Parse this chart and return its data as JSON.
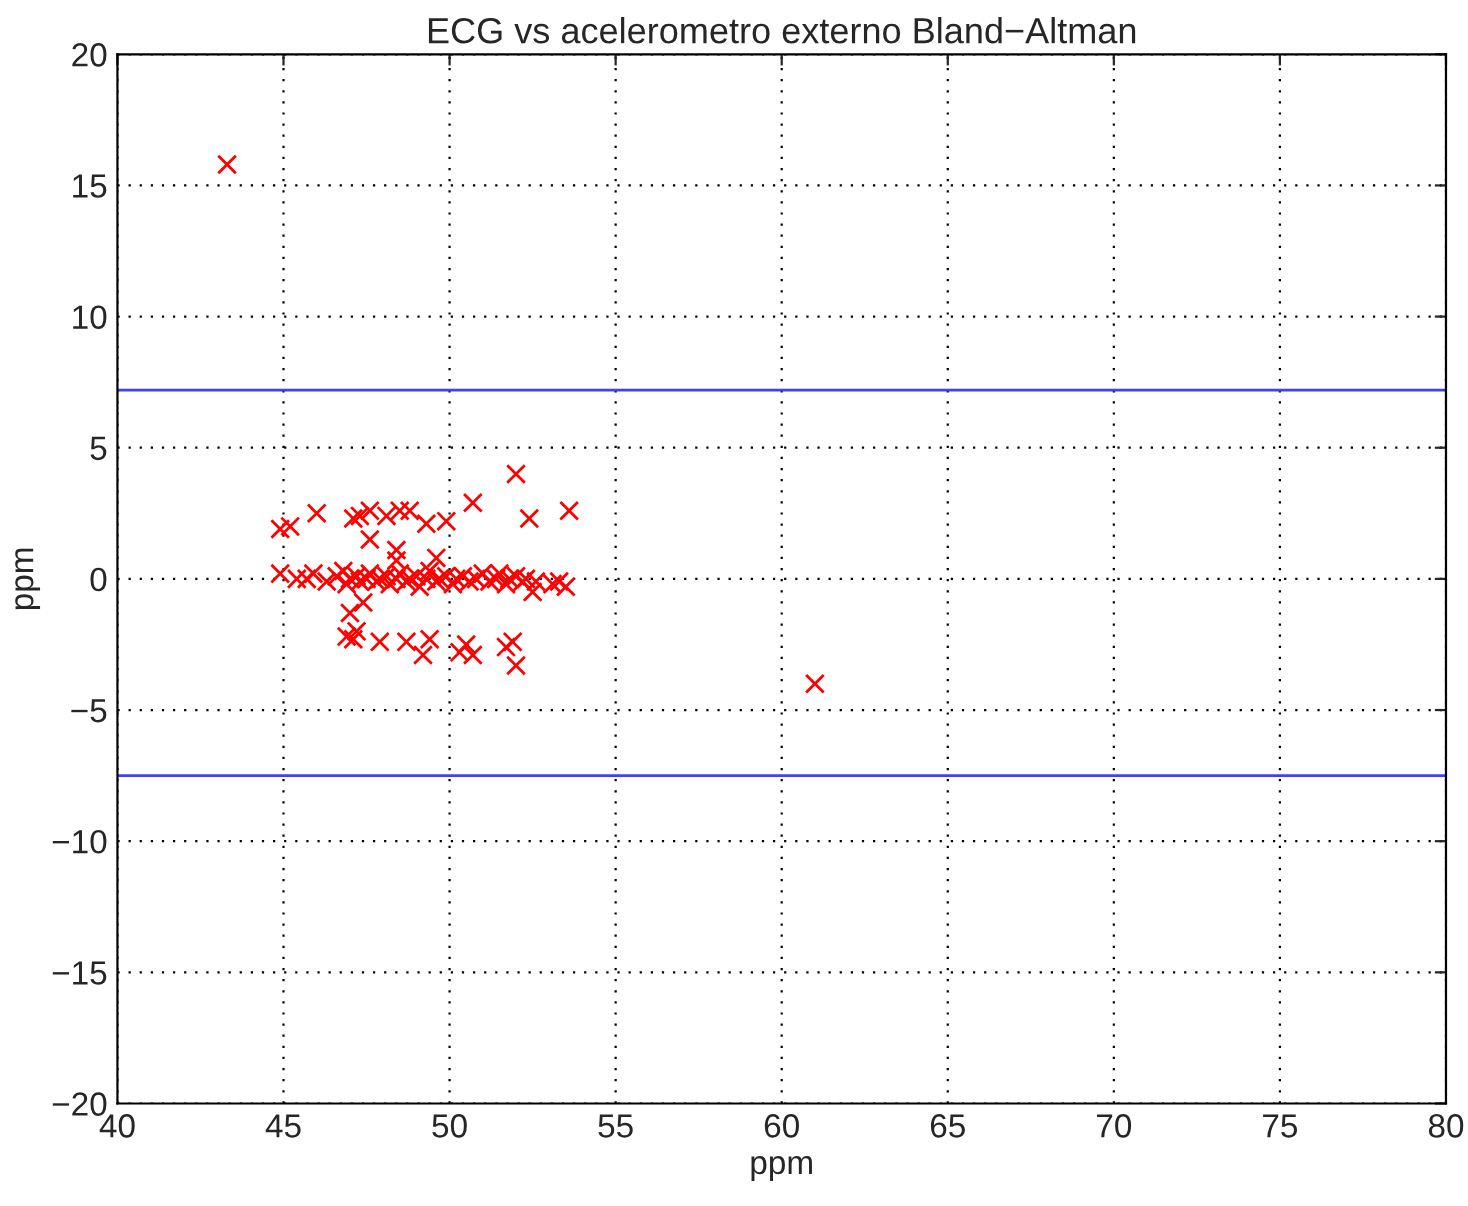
{
  "chart_data": {
    "type": "scatter",
    "title": "ECG vs acelerometro externo Bland−Altman",
    "xlabel": "ppm",
    "ylabel": "ppm",
    "xlim": [
      40,
      80
    ],
    "xticks": [
      40,
      45,
      50,
      55,
      60,
      65,
      70,
      75,
      80
    ],
    "ylim": [
      -20,
      20
    ],
    "yticks": [
      {
        "value": -20,
        "label": "−20"
      },
      {
        "value": -15,
        "label": "−15"
      },
      {
        "value": -10,
        "label": "−10"
      },
      {
        "value": -5,
        "label": "−5"
      },
      0,
      5,
      10,
      15,
      20
    ],
    "grid": true,
    "marker": "cross",
    "series": [
      {
        "color": "#ff0000",
        "x": [
          43.3,
          61.0,
          44.9,
          45.2,
          46.0,
          47.1,
          47.3,
          47.6,
          48.1,
          48.5,
          48.8,
          49.3,
          49.9,
          50.7,
          52.0,
          52.4,
          53.6,
          47.6,
          48.4,
          48.4,
          49.6,
          47.0,
          47.4,
          46.9,
          47.1,
          47.2,
          47.9,
          48.7,
          49.2,
          49.4,
          50.3,
          50.5,
          50.7,
          51.7,
          51.9,
          52.0,
          52.5,
          44.9,
          45.4,
          45.7,
          45.9,
          46.3,
          46.6,
          46.8,
          46.9,
          47.0,
          47.2,
          47.3,
          47.5,
          47.6,
          47.8,
          47.9,
          48.1,
          48.2,
          48.4,
          48.5,
          48.7,
          48.8,
          49.0,
          49.1,
          49.3,
          49.4,
          49.6,
          49.7,
          49.9,
          50.1,
          50.2,
          50.4,
          50.6,
          50.8,
          51.0,
          51.2,
          51.4,
          51.5,
          51.7,
          51.8,
          52.0,
          52.2,
          52.3,
          52.6,
          53.1,
          53.3,
          53.5
        ],
        "values": [
          15.8,
          -4.0,
          1.9,
          2.0,
          2.5,
          2.3,
          2.4,
          2.6,
          2.4,
          2.6,
          2.6,
          2.1,
          2.2,
          2.9,
          4.0,
          2.3,
          2.6,
          1.5,
          1.1,
          0.7,
          0.8,
          -1.3,
          -0.9,
          -2.2,
          -2.3,
          -2.0,
          -2.4,
          -2.4,
          -2.9,
          -2.3,
          -2.8,
          -2.5,
          -2.9,
          -2.6,
          -2.4,
          -3.3,
          -0.5,
          0.2,
          0.0,
          0.0,
          0.2,
          -0.1,
          0.1,
          0.3,
          -0.2,
          0.0,
          0.1,
          -0.1,
          0.0,
          0.2,
          -0.1,
          0.0,
          0.1,
          -0.2,
          0.0,
          0.2,
          -0.1,
          0.0,
          0.1,
          -0.3,
          0.0,
          0.3,
          -0.1,
          0.0,
          0.1,
          -0.2,
          0.0,
          0.1,
          -0.1,
          0.0,
          0.2,
          -0.1,
          0.0,
          0.2,
          -0.2,
          0.0,
          0.1,
          -0.1,
          0.0,
          -0.1,
          -0.2,
          -0.1,
          -0.3
        ]
      }
    ],
    "ref_lines": [
      {
        "axis": "y",
        "value": 7.2,
        "color": "#3f3fff"
      },
      {
        "axis": "y",
        "value": -7.5,
        "color": "#3f3fff"
      }
    ]
  }
}
